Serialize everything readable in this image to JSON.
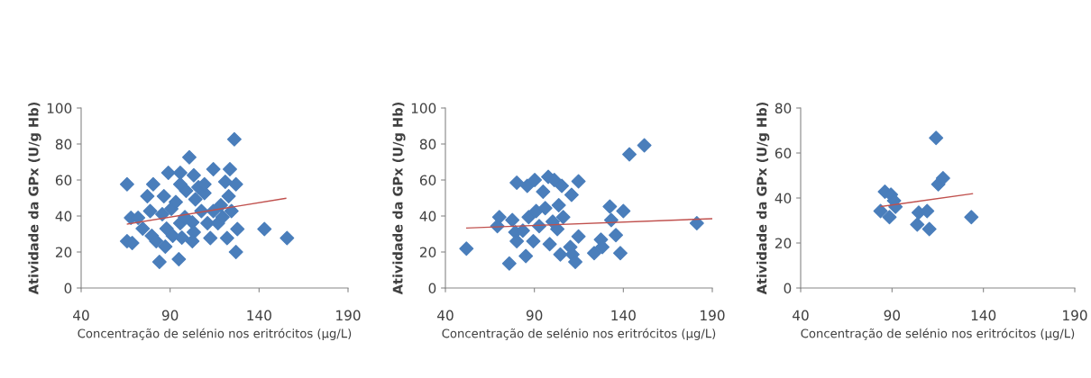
{
  "chart_data": [
    {
      "type": "scatter",
      "xlabel": "Concentração de selénio nos eritrócitos (µg/L)",
      "ylabel": "Atividade da GPx (U/g Hb)",
      "xlim": [
        40,
        190
      ],
      "xticks": [
        40,
        90,
        140,
        190
      ],
      "ylim": [
        0,
        100
      ],
      "yticks": [
        0,
        20,
        40,
        60,
        80,
        100
      ],
      "grid": false,
      "series": [
        {
          "marker": "diamond",
          "color": "#4a7ebb",
          "x": [
            65.8,
            65.8,
            68.7,
            68,
            72,
            74.6,
            77.2,
            80.5,
            79.7,
            82.2,
            84,
            85.6,
            86.5,
            89,
            88,
            87.3,
            90.7,
            91.5,
            94.9,
            95.7,
            95.7,
            96.6,
            99,
            100.8,
            102.5,
            103.3,
            103.3,
            104.2,
            105.9,
            107.6,
            109.3,
            111,
            112.6,
            114.3,
            114.3,
            116.9,
            118.5,
            121,
            122,
            123.6,
            124.5,
            126.1,
            127,
            127.8,
            127,
            143,
            155.7,
            95.7,
            98.3,
            93.2,
            109.3,
            119.5,
            122.9,
            78.8,
            102.5
          ],
          "values": [
            57.6,
            26,
            25,
            39,
            39,
            33,
            51,
            57.6,
            29,
            26,
            14.5,
            41,
            51,
            64,
            33,
            23,
            44,
            29,
            16,
            64,
            57.6,
            28,
            54,
            72.6,
            36.5,
            62.6,
            31,
            49.3,
            56,
            42.7,
            52.7,
            36,
            27.7,
            66,
            42.7,
            36,
            46,
            59,
            27.7,
            66,
            42.7,
            82.6,
            57.6,
            32.7,
            20,
            32.7,
            27.7,
            36,
            39.4,
            47.7,
            57.6,
            39.4,
            51,
            42.7,
            26
          ]
        },
        {
          "type": "line",
          "color": "#c0504d",
          "x": [
            66,
            155
          ],
          "values": [
            35.5,
            49.8
          ]
        }
      ]
    },
    {
      "type": "scatter",
      "xlabel": "Concentração de selénio nos eritrócitos (µg/L)",
      "ylabel": "Atividade da GPx (U/g Hb)",
      "xlim": [
        40,
        190
      ],
      "xticks": [
        40,
        90,
        140,
        190
      ],
      "ylim": [
        0,
        100
      ],
      "yticks": [
        0,
        20,
        40,
        60,
        80,
        100
      ],
      "grid": false,
      "series": [
        {
          "marker": "diamond",
          "color": "#4a7ebb",
          "x": [
            51.8,
            69.2,
            70.3,
            75.9,
            77.6,
            80.1,
            79.3,
            80.1,
            83.5,
            85.2,
            86,
            86.8,
            89.4,
            90.2,
            91,
            92.7,
            94.9,
            96.1,
            97.8,
            98.6,
            100.3,
            101.2,
            102.9,
            103.7,
            104.6,
            105.4,
            106.2,
            110.2,
            110.9,
            111.4,
            113,
            114.8,
            114.8,
            123.6,
            127.4,
            128.2,
            132.4,
            133.2,
            135.8,
            138.3,
            140,
            143.4,
            151.8,
            181.3
          ],
          "values": [
            21.9,
            34.4,
            39.4,
            13.6,
            37.7,
            58.5,
            31,
            26,
            31.9,
            17.8,
            56.8,
            39.4,
            26,
            60,
            42.7,
            34.4,
            53.5,
            44.4,
            61.8,
            24.4,
            36.9,
            60,
            32.7,
            46,
            18.6,
            56.8,
            39.4,
            22.8,
            51.8,
            18.6,
            14.5,
            59.3,
            28.6,
            19.4,
            26.9,
            22.8,
            45.2,
            37.7,
            29.4,
            19.4,
            42.7,
            74.3,
            79.2,
            36
          ]
        },
        {
          "type": "line",
          "color": "#c0504d",
          "x": [
            52,
            190
          ],
          "values": [
            33.3,
            38.5
          ]
        }
      ]
    },
    {
      "type": "scatter",
      "xlabel": "Concentração de selénio nos eritrócitos (µg/L)",
      "ylabel": "Atividade da GPx (U/g Hb)",
      "xlim": [
        40,
        190
      ],
      "xticks": [
        40,
        90,
        140,
        190
      ],
      "ylim": [
        0,
        80
      ],
      "yticks": [
        0,
        20,
        40,
        60,
        80
      ],
      "grid": false,
      "series": [
        {
          "marker": "diamond",
          "color": "#4a7ebb",
          "x": [
            83.7,
            86.1,
            88.6,
            89.4,
            91.1,
            91.9,
            103.8,
            104.6,
            109.2,
            110.4,
            114.1,
            115.3,
            117.9,
            133.4
          ],
          "values": [
            34.2,
            42.8,
            31.5,
            41.5,
            38.8,
            36.1,
            28.2,
            33.5,
            34.2,
            26.2,
            66.7,
            46.1,
            48.8,
            31.5
          ]
        },
        {
          "type": "line",
          "color": "#c0504d",
          "x": [
            84,
            134
          ],
          "values": [
            36.2,
            41.9
          ]
        }
      ]
    }
  ]
}
